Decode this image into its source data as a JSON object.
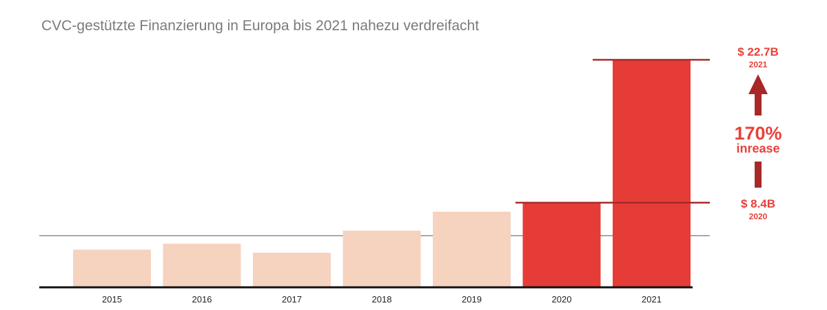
{
  "chart_data": {
    "type": "bar",
    "title": "CVC-gestützte Finanzierung in Europa bis 2021 nahezu verdreifacht",
    "categories": [
      "2015",
      "2016",
      "2017",
      "2018",
      "2019",
      "2020",
      "2021"
    ],
    "values": [
      3.7,
      4.3,
      3.4,
      5.6,
      7.5,
      8.4,
      22.7
    ],
    "unit": "$B",
    "highlight": [
      "2020",
      "2021"
    ],
    "gridline_value": 5.1,
    "ylim": [
      0,
      24
    ],
    "xlabel": "",
    "ylabel": "",
    "colors": {
      "base": "#f5d3bf",
      "highlight": "#e63c37",
      "annotation": "#a82828",
      "text": "#e8413a"
    },
    "annotations": {
      "top_value": "$ 22.7B",
      "top_year": "2021",
      "bottom_value": "$ 8.4B",
      "bottom_year": "2020",
      "change": "170%",
      "change_label": "inrease"
    }
  }
}
